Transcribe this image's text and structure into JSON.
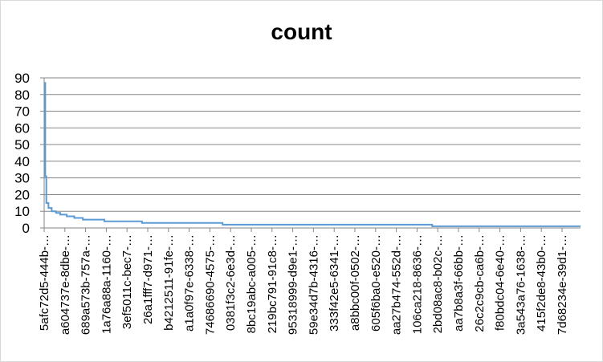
{
  "chart_data": {
    "type": "line",
    "title": "count",
    "xlabel": "",
    "ylabel": "",
    "ylim": [
      0,
      90
    ],
    "yticks": [
      0,
      10,
      20,
      30,
      40,
      50,
      60,
      70,
      80,
      90
    ],
    "grid": "horizontal",
    "legend": "none",
    "series_color": "#5b9bd5",
    "n_points": 500,
    "x_tick_labels": [
      "5afc72d5-444b-…",
      "a604737e-8dbe-…",
      "689a573b-757a-…",
      "1a76a88a-1160-…",
      "3ef5011c-bec7-…",
      "26a1fff7-d971-…",
      "b4212511-91fe-…",
      "a1a0f97e-6338-…",
      "74686690-4575-…",
      "0381f3c2-6e3d-…",
      "8bc19abc-a005-…",
      "219bc791-91c8-…",
      "95318999-d9e1-…",
      "59e34d7b-4316-…",
      "333f42e5-6341-…",
      "a8bbc00f-0502-…",
      "605f6ba0-e520-…",
      "aa27b474-552d-…",
      "106ca218-8636-…",
      "2bd08ac8-b02c-…",
      "aa7b8a3f-66bb-…",
      "26c2c9cb-ca6b-…",
      "f80bdc04-6e40-…",
      "3a543a76-1638-…",
      "415f2de8-43b0-…",
      "7d68234e-39d1-…"
    ],
    "series": [
      {
        "values_description": "sorted descending counts",
        "segments": [
          {
            "from": 0,
            "to": 0,
            "value": 87
          },
          {
            "from": 1,
            "to": 1,
            "value": 31
          },
          {
            "from": 2,
            "to": 3,
            "value": 15
          },
          {
            "from": 4,
            "to": 6,
            "value": 12
          },
          {
            "from": 7,
            "to": 10,
            "value": 10
          },
          {
            "from": 11,
            "to": 14,
            "value": 9
          },
          {
            "from": 15,
            "to": 20,
            "value": 8
          },
          {
            "from": 21,
            "to": 27,
            "value": 7
          },
          {
            "from": 28,
            "to": 35,
            "value": 6
          },
          {
            "from": 36,
            "to": 55,
            "value": 5
          },
          {
            "from": 56,
            "to": 90,
            "value": 4
          },
          {
            "from": 91,
            "to": 165,
            "value": 3
          },
          {
            "from": 166,
            "to": 360,
            "value": 2
          },
          {
            "from": 361,
            "to": 499,
            "value": 1
          }
        ]
      }
    ]
  }
}
